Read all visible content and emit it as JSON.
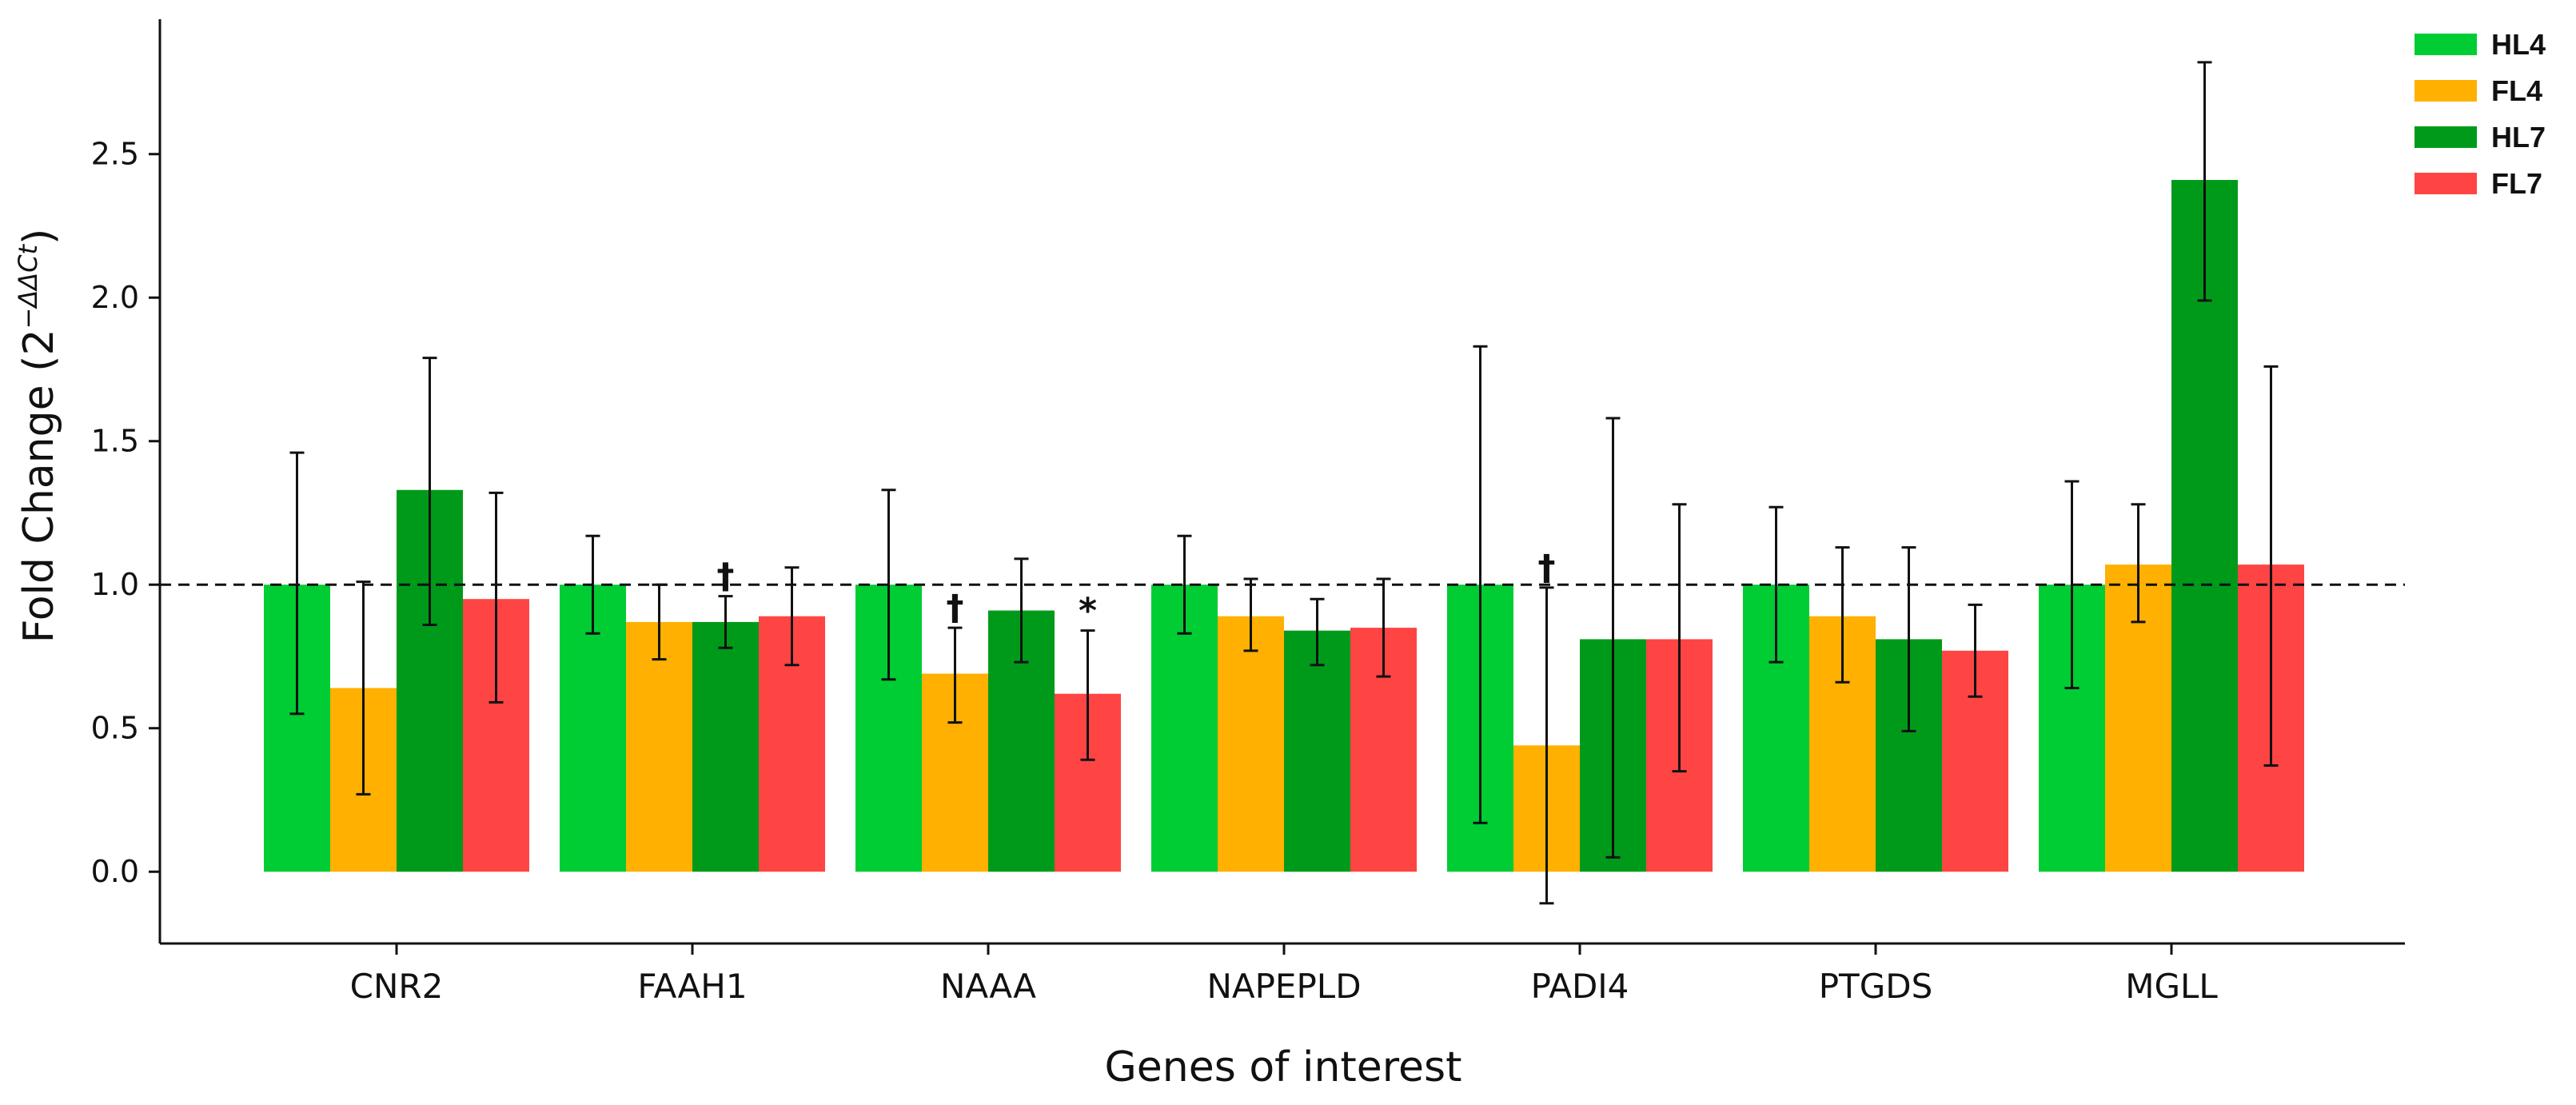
{
  "chart_data": {
    "type": "bar",
    "title": "",
    "xlabel": "Genes of interest",
    "ylabel": "Fold Change (2",
    "ylabel_superscript": "−ΔΔCt",
    "ylabel_close": ")",
    "ylim": [
      -0.25,
      2.97
    ],
    "yticks": [
      0.0,
      0.5,
      1.0,
      1.5,
      2.0,
      2.5
    ],
    "ytick_labels": [
      "0.0",
      "0.5",
      "1.0",
      "1.5",
      "2.0",
      "2.5"
    ],
    "reference_line": 1.0,
    "grid": false,
    "legend_position": "top-right",
    "categories": [
      "CNR2",
      "FAAH1",
      "NAAA",
      "NAPEPLD",
      "PADI4",
      "PTGDS",
      "MGLL"
    ],
    "series": [
      {
        "name": "HL4",
        "color": "#00CC33",
        "values": [
          1.0,
          1.0,
          1.0,
          1.0,
          1.0,
          1.0,
          1.0
        ],
        "err_low": [
          0.55,
          0.83,
          0.67,
          0.83,
          0.17,
          0.73,
          0.64
        ],
        "err_high": [
          1.46,
          1.17,
          1.33,
          1.17,
          1.83,
          1.27,
          1.36
        ]
      },
      {
        "name": "FL4",
        "color": "#FFB000",
        "values": [
          0.64,
          0.87,
          0.69,
          0.89,
          0.44,
          0.89,
          1.07
        ],
        "err_low": [
          0.27,
          0.74,
          0.52,
          0.77,
          -0.11,
          0.66,
          0.87
        ],
        "err_high": [
          1.01,
          1.0,
          0.85,
          1.02,
          0.99,
          1.13,
          1.28
        ]
      },
      {
        "name": "HL7",
        "color": "#009A1A",
        "values": [
          1.33,
          0.87,
          0.91,
          0.84,
          0.81,
          0.81,
          2.41
        ],
        "err_low": [
          0.86,
          0.78,
          0.73,
          0.72,
          0.05,
          0.49,
          1.99
        ],
        "err_high": [
          1.79,
          0.96,
          1.09,
          0.95,
          1.58,
          1.13,
          2.82
        ]
      },
      {
        "name": "FL7",
        "color": "#FF4444",
        "values": [
          0.95,
          0.89,
          0.62,
          0.85,
          0.81,
          0.77,
          1.07
        ],
        "err_low": [
          0.59,
          0.72,
          0.39,
          0.68,
          0.35,
          0.61,
          0.37
        ],
        "err_high": [
          1.32,
          1.06,
          0.84,
          1.02,
          1.28,
          0.93,
          1.76
        ]
      }
    ],
    "annotations": [
      {
        "text": "†",
        "category": "FAAH1",
        "series": "HL7"
      },
      {
        "text": "†",
        "category": "NAAA",
        "series": "FL4"
      },
      {
        "text": "*",
        "category": "NAAA",
        "series": "FL7"
      },
      {
        "text": "†",
        "category": "PADI4",
        "series": "FL4"
      }
    ]
  }
}
